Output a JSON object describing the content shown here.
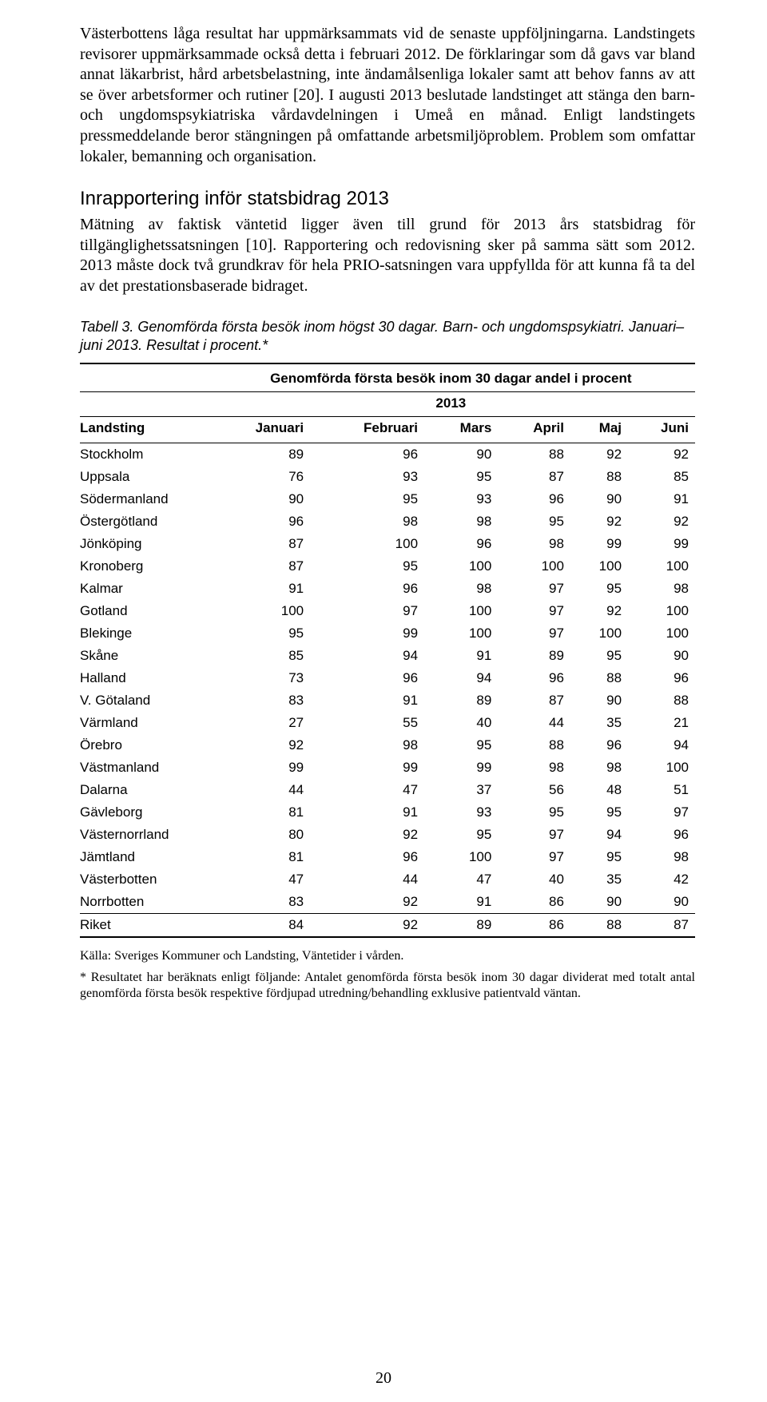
{
  "para1": "Västerbottens låga resultat har uppmärksammats vid de senaste uppföljningarna. Landstingets revisorer uppmärksammade också detta i februari 2012. De förklaringar som då gavs var bland annat läkarbrist, hård arbetsbelastning, inte ändamålsenliga lokaler samt att behov fanns av att se över arbetsformer och rutiner [20]. I augusti 2013 beslutade landstinget att stänga den barn- och ungdomspsykiatriska vårdavdelningen i Umeå en månad. Enligt landstingets pressmeddelande beror stängningen på omfattande arbetsmiljöproblem. Problem som omfattar lokaler, bemanning och organisation.",
  "heading": "Inrapportering inför statsbidrag 2013",
  "para2": "Mätning av faktisk väntetid ligger även till grund för 2013 års statsbidrag för tillgänglighetssatsningen [10]. Rapportering och redovisning sker på samma sätt som 2012. 2013 måste dock två grundkrav för hela PRIO-satsningen vara uppfyllda för att kunna få ta del av det prestationsbaserade bidraget.",
  "table_caption": "Tabell 3. Genomförda första besök inom högst 30 dagar. Barn- och ungdomspsykiatri. Januari– juni 2013. Resultat i procent.*",
  "table": {
    "group_header": "Genomförda första besök inom 30 dagar andel i procent",
    "year": "2013",
    "columns": [
      "Landsting",
      "Januari",
      "Februari",
      "Mars",
      "April",
      "Maj",
      "Juni"
    ],
    "rows": [
      [
        "Stockholm",
        89,
        96,
        90,
        88,
        92,
        92
      ],
      [
        "Uppsala",
        76,
        93,
        95,
        87,
        88,
        85
      ],
      [
        "Södermanland",
        90,
        95,
        93,
        96,
        90,
        91
      ],
      [
        "Östergötland",
        96,
        98,
        98,
        95,
        92,
        92
      ],
      [
        "Jönköping",
        87,
        100,
        96,
        98,
        99,
        99
      ],
      [
        "Kronoberg",
        87,
        95,
        100,
        100,
        100,
        100
      ],
      [
        "Kalmar",
        91,
        96,
        98,
        97,
        95,
        98
      ],
      [
        "Gotland",
        100,
        97,
        100,
        97,
        92,
        100
      ],
      [
        "Blekinge",
        95,
        99,
        100,
        97,
        100,
        100
      ],
      [
        "Skåne",
        85,
        94,
        91,
        89,
        95,
        90
      ],
      [
        "Halland",
        73,
        96,
        94,
        96,
        88,
        96
      ],
      [
        "V. Götaland",
        83,
        91,
        89,
        87,
        90,
        88
      ],
      [
        "Värmland",
        27,
        55,
        40,
        44,
        35,
        21
      ],
      [
        "Örebro",
        92,
        98,
        95,
        88,
        96,
        94
      ],
      [
        "Västmanland",
        99,
        99,
        99,
        98,
        98,
        100
      ],
      [
        "Dalarna",
        44,
        47,
        37,
        56,
        48,
        51
      ],
      [
        "Gävleborg",
        81,
        91,
        93,
        95,
        95,
        97
      ],
      [
        "Västernorrland",
        80,
        92,
        95,
        97,
        94,
        96
      ],
      [
        "Jämtland",
        81,
        96,
        100,
        97,
        95,
        98
      ],
      [
        "Västerbotten",
        47,
        44,
        47,
        40,
        35,
        42
      ],
      [
        "Norrbotten",
        83,
        92,
        91,
        86,
        90,
        90
      ]
    ],
    "total_row": [
      "Riket",
      84,
      92,
      89,
      86,
      88,
      87
    ]
  },
  "source": "Källa: Sveriges Kommuner och Landsting, Väntetider i vården.",
  "footnote": "* Resultatet har beräknats enligt följande: Antalet genomförda första besök inom 30 dagar dividerat med totalt antal genomförda första besök respektive fördjupad utredning/behandling exklusive patientvald väntan.",
  "page_number": "20"
}
